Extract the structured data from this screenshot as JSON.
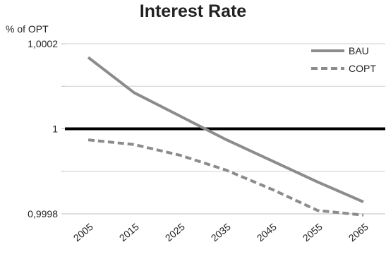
{
  "chart_data": {
    "type": "line",
    "title": "Interest Rate",
    "ylabel": "% of OPT",
    "xlabel": "",
    "categories": [
      "2005",
      "2015",
      "2025",
      "2035",
      "2045",
      "2055",
      "2065"
    ],
    "ylim": [
      0.9998,
      1.0002
    ],
    "y_ticks": [
      0.9998,
      0.9999,
      1.0,
      1.0001,
      1.0002
    ],
    "y_tick_labels": [
      "0,9998",
      "",
      "1",
      "",
      "1,0002"
    ],
    "reference_line": {
      "value": 1.0,
      "color": "#000000"
    },
    "grid": "horizontal",
    "legend_position": "top-right",
    "series": [
      {
        "name": "BAU",
        "style": "solid",
        "color": "#8c8c8c",
        "values": [
          1.000168,
          1.000085,
          1.00003,
          0.999975,
          0.999925,
          0.999875,
          0.999828
        ]
      },
      {
        "name": "COPT",
        "style": "dashed",
        "color": "#8c8c8c",
        "values": [
          0.999974,
          0.999963,
          0.999938,
          0.999903,
          0.999858,
          0.999808,
          0.999797
        ]
      }
    ]
  }
}
